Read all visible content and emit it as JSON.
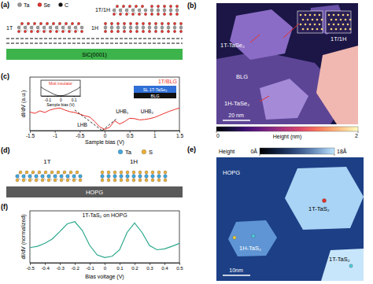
{
  "panel_labels": [
    "(a)",
    "(b)",
    "(c)",
    "(d)",
    "(e)",
    "(f)"
  ],
  "diagram_a": {
    "legend": [
      {
        "label": "Ta",
        "color": "#9a9a9a"
      },
      {
        "label": "Se",
        "color": "#e8302a"
      },
      {
        "label": "C",
        "color": "#111111"
      }
    ],
    "labels": [
      "1T",
      "1H",
      "1T/1H"
    ],
    "substrate": "SiC(0001)"
  },
  "image_b": {
    "labels": [
      "1T-TaSe₂",
      "BLG",
      "1H-TaSe₂",
      "1T/1H"
    ],
    "scale_bar": "20 nm",
    "colorbar": {
      "label": "Height (nm)",
      "range": [
        0,
        2
      ],
      "ticks": [
        0,
        2
      ]
    }
  },
  "chart_data": [
    {
      "type": "line",
      "title": "1T/BLG",
      "xlabel": "Sample bias (V)",
      "ylabel": "dI/dV (a.u.)",
      "x": [
        -1.5,
        -1.4,
        -1.3,
        -1.2,
        -1.1,
        -1.0,
        -0.9,
        -0.8,
        -0.7,
        -0.6,
        -0.5,
        -0.4,
        -0.3,
        -0.2,
        -0.1,
        0,
        0.1,
        0.2,
        0.3,
        0.4,
        0.5,
        0.6,
        0.7,
        0.8,
        0.9,
        1.0,
        1.1,
        1.2,
        1.3,
        1.4,
        1.5
      ],
      "xlim": [
        -1.5,
        1.5
      ],
      "xticks": [
        -1.5,
        -1,
        -0.5,
        0,
        0.5,
        1,
        1.5
      ],
      "ylim": [
        0,
        1.3
      ],
      "tick_labels": "x",
      "series": [
        {
          "color": "#e8302a",
          "values": [
            0.45,
            0.42,
            0.48,
            0.44,
            0.5,
            0.53,
            0.55,
            0.5,
            0.46,
            0.44,
            0.4,
            0.36,
            0.33,
            0.22,
            0.09,
            0.03,
            0.08,
            0.24,
            0.16,
            0.22,
            0.3,
            0.29,
            0.26,
            0.27,
            0.29,
            0.32,
            0.37,
            0.42,
            0.47,
            0.51,
            0.55
          ]
        },
        {
          "color": "#000000",
          "line_style": "dashed",
          "x": [
            -0.6,
            -0.05
          ],
          "values": [
            0.5,
            0
          ]
        },
        {
          "color": "#000000",
          "line_style": "dashed",
          "x": [
            -0.05,
            0.25
          ],
          "values": [
            0,
            0.3
          ]
        }
      ],
      "annotations": [
        {
          "text": "LHB",
          "x": -0.45,
          "y": 0.1
        },
        {
          "text": "UHB₁",
          "x": 0.35,
          "y": 0.42
        },
        {
          "text": "UHB₂",
          "x": 0.85,
          "y": 0.42
        }
      ],
      "schematic": [
        "SL 1T-TaSe₂",
        "BLG"
      ]
    },
    {
      "type": "line",
      "title": "Mott insulator",
      "xlabel": "Sample bias (V)",
      "x": [
        -0.15,
        -0.125,
        -0.1,
        -0.075,
        -0.05,
        -0.025,
        0,
        0.025,
        0.05,
        0.075,
        0.1,
        0.125,
        0.15
      ],
      "xlim": [
        -0.15,
        0.15
      ],
      "xticks": [
        -0.1,
        0,
        0.1
      ],
      "ylim": [
        0,
        1.4
      ],
      "tick_labels": "x",
      "series": [
        {
          "color": "#000000",
          "values": [
            0.8,
            0.6,
            0.45,
            0.3,
            0.15,
            0.05,
            0.02,
            0.05,
            0.15,
            0.3,
            0.45,
            0.6,
            0.8
          ]
        }
      ]
    },
    {
      "type": "line",
      "title": "1T-TaS₂ on HOPG",
      "xlabel": "Bias voltage (V)",
      "ylabel": "dI/dV (normalized)",
      "x": [
        -0.5,
        -0.45,
        -0.4,
        -0.35,
        -0.3,
        -0.25,
        -0.2,
        -0.15,
        -0.1,
        -0.05,
        0,
        0.05,
        0.1,
        0.15,
        0.2,
        0.25,
        0.3,
        0.35,
        0.4,
        0.45,
        0.5
      ],
      "xlim": [
        -0.5,
        0.5
      ],
      "xticks": [
        -0.5,
        -0.4,
        -0.3,
        -0.2,
        -0.1,
        0,
        0.1,
        0.2,
        0.3,
        0.4,
        0.5
      ],
      "ylim": [
        0,
        1.2
      ],
      "tick_labels": "x",
      "series": [
        {
          "color": "#2aa88a",
          "values": [
            0.35,
            0.38,
            0.45,
            0.55,
            0.72,
            0.9,
            0.95,
            0.75,
            0.4,
            0.18,
            0.12,
            0.15,
            0.3,
            0.7,
            0.92,
            0.7,
            0.4,
            0.3,
            0.32,
            0.38,
            0.45
          ]
        }
      ]
    }
  ],
  "diagram_d": {
    "legend": [
      {
        "label": "Ta",
        "color": "#3fa9e0"
      },
      {
        "label": "S",
        "color": "#f0b030"
      }
    ],
    "labels": [
      "1T",
      "1H"
    ],
    "substrate": "HOPG"
  },
  "image_e": {
    "colorbar": {
      "label": "Height",
      "range": [
        0,
        18
      ],
      "ticks": [
        {
          "value": 0,
          "label": "0Å"
        },
        {
          "value": 18,
          "label": "18Å"
        }
      ]
    },
    "labels": [
      "HOPG",
      "1T-TaS₂",
      "1H-TaS₂",
      "1T-TaS₂"
    ],
    "scale_bar": "10nm"
  }
}
